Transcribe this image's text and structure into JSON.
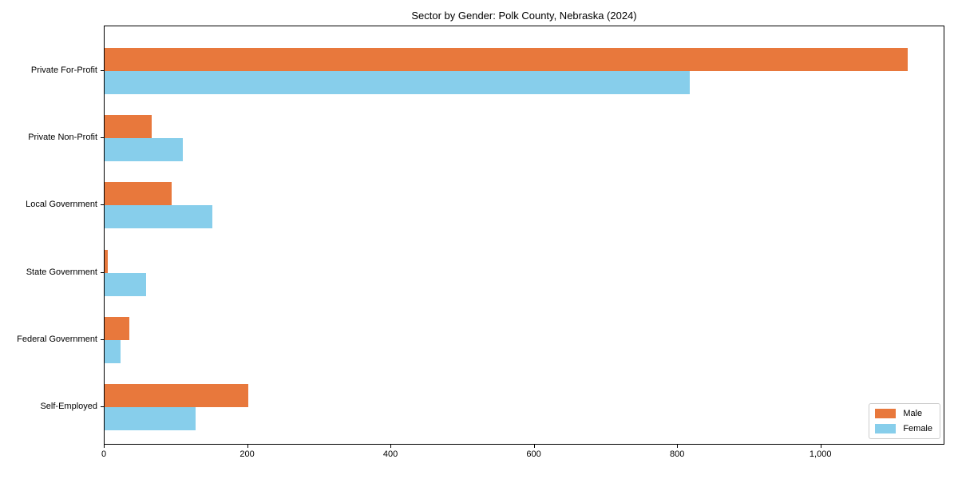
{
  "chart_data": {
    "type": "bar",
    "orientation": "horizontal",
    "title": "Sector by Gender: Polk County, Nebraska (2024)",
    "categories": [
      "Private For-Profit",
      "Private Non-Profit",
      "Local Government",
      "State Government",
      "Federal Government",
      "Self-Employed"
    ],
    "series": [
      {
        "name": "Male",
        "color": "#e8783c",
        "values": [
          1121,
          66,
          94,
          5,
          34,
          201
        ]
      },
      {
        "name": "Female",
        "color": "#87ceeb",
        "values": [
          816,
          109,
          150,
          58,
          22,
          127
        ]
      }
    ],
    "xlabel": "",
    "ylabel": "",
    "xlim": [
      0,
      1173
    ],
    "xticks": [
      {
        "value": 0,
        "label": "0"
      },
      {
        "value": 200,
        "label": "200"
      },
      {
        "value": 400,
        "label": "400"
      },
      {
        "value": 600,
        "label": "600"
      },
      {
        "value": 800,
        "label": "800"
      },
      {
        "value": 1000,
        "label": "1,000"
      }
    ],
    "grid": false,
    "legend": {
      "position": "lower right"
    },
    "colors": {
      "axis": "#000000",
      "background": "#ffffff",
      "legend_border": "#cccccc"
    }
  }
}
